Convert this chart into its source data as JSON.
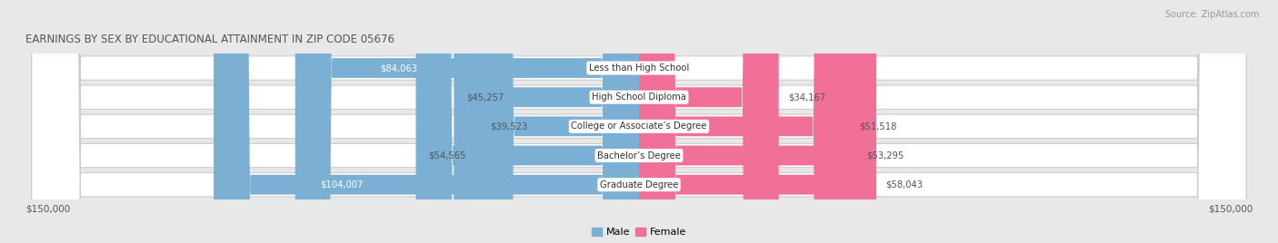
{
  "title": "EARNINGS BY SEX BY EDUCATIONAL ATTAINMENT IN ZIP CODE 05676",
  "source": "Source: ZipAtlas.com",
  "categories": [
    "Less than High School",
    "High School Diploma",
    "College or Associate’s Degree",
    "Bachelor’s Degree",
    "Graduate Degree"
  ],
  "male_values": [
    84063,
    45257,
    39523,
    54565,
    104007
  ],
  "female_values": [
    0,
    34167,
    51518,
    53295,
    58043
  ],
  "male_color": "#7bafd4",
  "female_color": "#f07098",
  "max_value": 150000,
  "background_color": "#e8e8e8",
  "row_bg_color": "#f2f2f2",
  "xlabel_left": "$150,000",
  "xlabel_right": "$150,000",
  "label_color": "#555555",
  "title_color": "#555555",
  "source_color": "#999999"
}
